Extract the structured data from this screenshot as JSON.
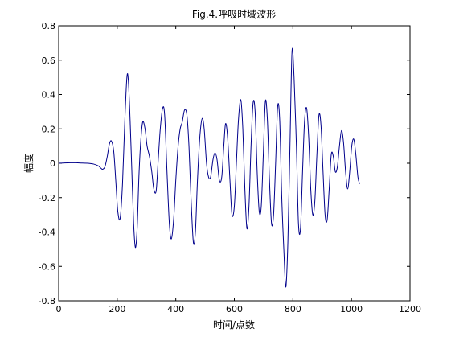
{
  "chart_data": {
    "type": "line",
    "title": "Fig.4.呼吸时域波形",
    "xlabel": "时间/点数",
    "ylabel": "幅度",
    "xlim": [
      0,
      1200
    ],
    "ylim": [
      -0.8,
      0.8
    ],
    "xticks": [
      0,
      200,
      400,
      600,
      800,
      1000,
      1200
    ],
    "yticks": [
      -0.8,
      -0.6,
      -0.4,
      -0.2,
      0,
      0.2,
      0.4,
      0.6,
      0.8
    ],
    "xtick_labels": [
      "0",
      "200",
      "400",
      "600",
      "800",
      "1000",
      "1200"
    ],
    "ytick_labels": [
      "-0.8",
      "-0.6",
      "-0.4",
      "-0.2",
      "0",
      "0.2",
      "0.4",
      "0.6",
      "0.8"
    ],
    "grid": false,
    "line_color": "#00008b",
    "series": [
      {
        "x": [
          0,
          20,
          40,
          60,
          80,
          100,
          120,
          135,
          145,
          150,
          158,
          166,
          173,
          180,
          188,
          195,
          202,
          210,
          218,
          226,
          233,
          238,
          244,
          250,
          256,
          262,
          268,
          274,
          280,
          287,
          295,
          302,
          310,
          318,
          325,
          333,
          340,
          347,
          355,
          362,
          370,
          378,
          385,
          393,
          400,
          408,
          415,
          422,
          430,
          438,
          445,
          452,
          460,
          467,
          474,
          482,
          490,
          497,
          505,
          512,
          519,
          527,
          534,
          541,
          549,
          557,
          564,
          570,
          577,
          585,
          592,
          600,
          607,
          614,
          622,
          629,
          636,
          643,
          650,
          657,
          664,
          671,
          678,
          685,
          692,
          699,
          706,
          713,
          720,
          727,
          734,
          741,
          748,
          755,
          762,
          769,
          776,
          783,
          790,
          797,
          804,
          812,
          819,
          826,
          833,
          840,
          847,
          854,
          861,
          868,
          875,
          882,
          889,
          896,
          903,
          910,
          917,
          924,
          931,
          938,
          945,
          952,
          959,
          966,
          973,
          980,
          987,
          994,
          1001,
          1008,
          1015,
          1022,
          1028
        ],
        "y": [
          0.0,
          0.002,
          0.003,
          0.003,
          0.001,
          0.0,
          -0.005,
          -0.015,
          -0.03,
          -0.035,
          -0.02,
          0.04,
          0.11,
          0.13,
          0.07,
          -0.1,
          -0.28,
          -0.32,
          -0.12,
          0.25,
          0.5,
          0.48,
          0.25,
          -0.05,
          -0.35,
          -0.49,
          -0.38,
          -0.08,
          0.12,
          0.24,
          0.2,
          0.1,
          0.04,
          -0.05,
          -0.15,
          -0.16,
          0.02,
          0.2,
          0.32,
          0.28,
          -0.05,
          -0.35,
          -0.44,
          -0.32,
          -0.1,
          0.1,
          0.2,
          0.24,
          0.31,
          0.28,
          0.1,
          -0.2,
          -0.46,
          -0.4,
          -0.1,
          0.15,
          0.26,
          0.2,
          0.0,
          -0.08,
          -0.08,
          0.02,
          0.06,
          0.02,
          -0.1,
          -0.08,
          0.1,
          0.23,
          0.15,
          -0.1,
          -0.3,
          -0.25,
          0.0,
          0.25,
          0.37,
          0.2,
          -0.15,
          -0.38,
          -0.25,
          0.1,
          0.35,
          0.3,
          -0.05,
          -0.28,
          -0.25,
          0.05,
          0.36,
          0.25,
          -0.1,
          -0.35,
          -0.3,
          0.0,
          0.33,
          0.25,
          -0.2,
          -0.5,
          -0.72,
          -0.45,
          0.1,
          0.65,
          0.5,
          0.1,
          -0.35,
          -0.38,
          -0.05,
          0.25,
          0.32,
          0.15,
          -0.15,
          -0.3,
          -0.22,
          0.05,
          0.28,
          0.22,
          -0.05,
          -0.3,
          -0.33,
          -0.15,
          0.05,
          0.04,
          -0.05,
          -0.02,
          0.1,
          0.19,
          0.12,
          -0.05,
          -0.15,
          -0.05,
          0.1,
          0.14,
          0.05,
          -0.08,
          -0.12
        ]
      }
    ]
  }
}
